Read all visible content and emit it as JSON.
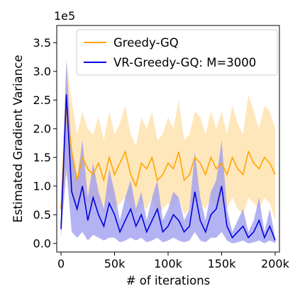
{
  "chart_data": {
    "type": "line",
    "title": "",
    "xlabel": "# of iterations",
    "ylabel": "Estimated Gradient Variance",
    "y_offset_label": "1e5",
    "xlim": [
      -4000,
      204000
    ],
    "ylim": [
      -0.15,
      3.8
    ],
    "y_scale_note": "values in units of 1e5",
    "x_ticks": [
      0,
      50000,
      100000,
      150000,
      200000
    ],
    "x_tick_labels": [
      "0",
      "50k",
      "100k",
      "150k",
      "200k"
    ],
    "y_ticks": [
      0.0,
      0.5,
      1.0,
      1.5,
      2.0,
      2.5,
      3.0,
      3.5
    ],
    "y_tick_labels": [
      "0.0",
      "0.5",
      "1.0",
      "1.5",
      "2.0",
      "2.5",
      "3.0",
      "3.5"
    ],
    "grid": false,
    "legend_position": "top-right",
    "series": [
      {
        "name": "Greedy-GQ",
        "color": "#FFA500",
        "band_color": "#FFDFA6",
        "x": [
          0,
          5000,
          10000,
          15000,
          20000,
          25000,
          30000,
          35000,
          40000,
          45000,
          50000,
          55000,
          60000,
          65000,
          70000,
          75000,
          80000,
          85000,
          90000,
          95000,
          100000,
          105000,
          110000,
          115000,
          120000,
          125000,
          130000,
          135000,
          140000,
          145000,
          150000,
          155000,
          160000,
          165000,
          170000,
          175000,
          180000,
          185000,
          190000,
          195000,
          200000
        ],
        "values": [
          0.6,
          2.4,
          1.6,
          1.1,
          1.5,
          1.3,
          1.2,
          1.4,
          1.1,
          1.5,
          1.2,
          1.4,
          1.6,
          1.2,
          1.0,
          1.4,
          1.3,
          1.5,
          1.1,
          1.2,
          1.4,
          1.3,
          1.6,
          1.1,
          1.2,
          1.5,
          1.4,
          1.2,
          1.5,
          1.3,
          1.4,
          1.2,
          1.5,
          1.3,
          1.2,
          1.6,
          1.4,
          1.3,
          1.5,
          1.4,
          1.2
        ],
        "lower": [
          0.3,
          1.2,
          0.8,
          0.5,
          0.8,
          0.7,
          0.6,
          0.7,
          0.5,
          0.8,
          0.6,
          0.7,
          0.8,
          0.6,
          0.5,
          0.7,
          0.6,
          0.8,
          0.5,
          0.6,
          0.7,
          0.6,
          0.8,
          0.5,
          0.6,
          0.8,
          0.7,
          0.6,
          0.8,
          0.6,
          0.7,
          0.6,
          0.8,
          0.6,
          0.5,
          0.8,
          0.7,
          0.6,
          0.8,
          0.7,
          0.4
        ],
        "upper": [
          0.9,
          3.2,
          2.5,
          1.9,
          2.3,
          2.0,
          1.9,
          2.2,
          1.8,
          2.3,
          1.9,
          2.1,
          2.4,
          1.9,
          1.7,
          2.2,
          2.0,
          2.3,
          1.8,
          1.9,
          2.2,
          2.0,
          2.5,
          1.8,
          1.9,
          2.3,
          2.2,
          1.9,
          2.3,
          2.0,
          2.3,
          1.9,
          2.4,
          2.1,
          1.9,
          2.6,
          2.3,
          2.0,
          2.4,
          2.3,
          2.0
        ]
      },
      {
        "name": "VR-Greedy-GQ: M=3000",
        "color": "#0000DD",
        "band_color": "#9A9AF0",
        "x": [
          0,
          5000,
          10000,
          15000,
          20000,
          25000,
          30000,
          35000,
          40000,
          45000,
          50000,
          55000,
          60000,
          65000,
          70000,
          75000,
          80000,
          85000,
          90000,
          95000,
          100000,
          105000,
          110000,
          115000,
          120000,
          125000,
          130000,
          135000,
          140000,
          145000,
          150000,
          155000,
          160000,
          165000,
          170000,
          175000,
          180000,
          185000,
          190000,
          195000,
          200000
        ],
        "values": [
          0.25,
          2.6,
          0.9,
          0.6,
          1.0,
          0.4,
          0.8,
          0.5,
          0.3,
          0.7,
          0.5,
          0.2,
          0.4,
          0.6,
          0.3,
          0.5,
          0.2,
          0.4,
          0.6,
          0.2,
          0.3,
          0.5,
          0.4,
          0.2,
          0.3,
          0.9,
          0.4,
          0.2,
          0.5,
          0.6,
          1.0,
          0.3,
          0.1,
          0.2,
          0.3,
          0.1,
          0.2,
          0.4,
          0.1,
          0.3,
          0.05
        ],
        "lower": [
          0.1,
          1.3,
          0.2,
          0.1,
          0.2,
          0.05,
          0.15,
          0.1,
          0.05,
          0.1,
          0.1,
          0.02,
          0.05,
          0.1,
          0.05,
          0.1,
          0.02,
          0.05,
          0.1,
          0.02,
          0.05,
          0.1,
          0.05,
          0.02,
          0.05,
          0.2,
          0.05,
          0.02,
          0.1,
          0.1,
          0.2,
          0.05,
          0.0,
          0.02,
          0.05,
          0.0,
          0.02,
          0.05,
          0.0,
          0.05,
          0.0
        ],
        "upper": [
          0.4,
          3.2,
          1.6,
          1.1,
          1.8,
          0.8,
          1.4,
          0.9,
          0.6,
          1.3,
          0.9,
          0.4,
          0.8,
          1.1,
          0.6,
          0.9,
          0.4,
          0.8,
          1.1,
          0.4,
          0.6,
          0.9,
          0.8,
          0.4,
          0.6,
          1.6,
          0.8,
          0.4,
          0.9,
          1.1,
          1.8,
          0.6,
          0.2,
          0.4,
          0.6,
          0.2,
          0.4,
          0.8,
          0.2,
          0.6,
          0.1
        ]
      }
    ]
  }
}
